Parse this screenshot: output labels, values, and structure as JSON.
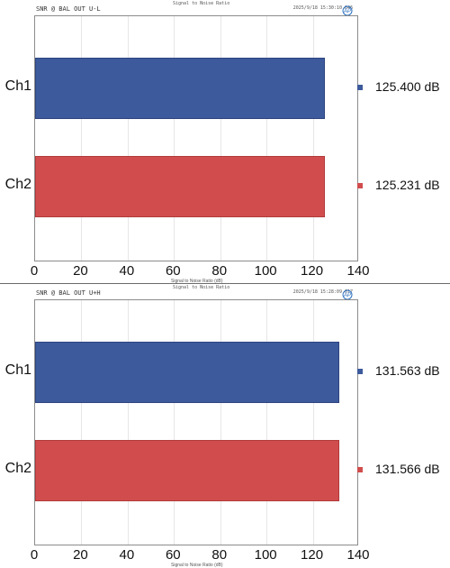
{
  "colors": {
    "ch1": "#3d5a9c",
    "ch2": "#d14d4d",
    "ch1_edge": "#2e4580",
    "ch2_edge": "#b13b3b"
  },
  "panels": [
    {
      "title": "SNR @ BAL OUT  U-L",
      "supertitle": "Signal to Noise Ratio",
      "timestamp": "2025/9/18 15:30:10.846",
      "xlabel": "Signal to Noise Ratio (dB)",
      "legend": [
        {
          "name": "Ch1",
          "value_label": "125.400  dB"
        },
        {
          "name": "Ch2",
          "value_label": "125.231  dB"
        }
      ]
    },
    {
      "title": "SNR @ BAL OUT  U+H",
      "supertitle": "Signal to Noise Ratio",
      "timestamp": "2025/9/18 15:28:09.617",
      "xlabel": "Signal to Noise Ratio (dB)",
      "legend": [
        {
          "name": "Ch1",
          "value_label": "131.563  dB"
        },
        {
          "name": "Ch2",
          "value_label": "131.566  dB"
        }
      ]
    }
  ],
  "chart_data": [
    {
      "type": "bar",
      "orientation": "horizontal",
      "title": "SNR @ BAL OUT  U-L",
      "categories": [
        "Ch1",
        "Ch2"
      ],
      "values": [
        125.4,
        125.231
      ],
      "xlabel": "Signal to Noise Ratio (dB)",
      "xlim": [
        0,
        140
      ],
      "xticks": [
        0,
        20,
        40,
        60,
        80,
        100,
        120,
        140
      ],
      "grid": true
    },
    {
      "type": "bar",
      "orientation": "horizontal",
      "title": "SNR @ BAL OUT  U+H",
      "categories": [
        "Ch1",
        "Ch2"
      ],
      "values": [
        131.563,
        131.566
      ],
      "xlabel": "Signal to Noise Ratio (dB)",
      "xlim": [
        0,
        140
      ],
      "xticks": [
        0,
        20,
        40,
        60,
        80,
        100,
        120,
        140
      ],
      "grid": true
    }
  ]
}
